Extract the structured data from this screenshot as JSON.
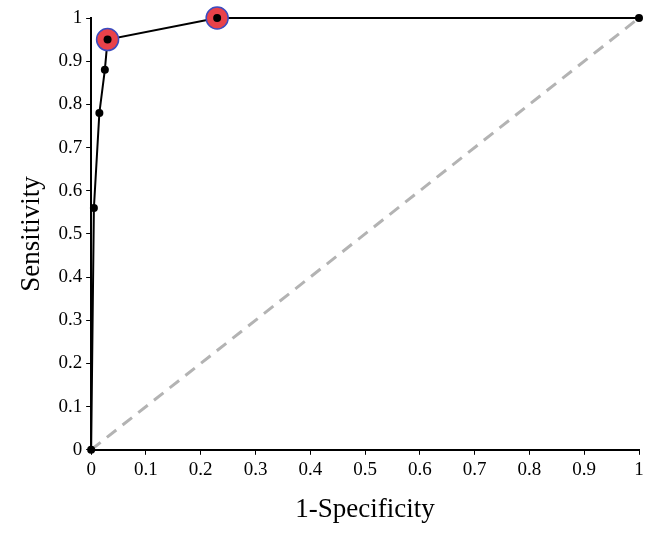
{
  "chart_data": {
    "type": "line",
    "x_label": "1-Specificity",
    "y_label": "Sensitivity",
    "xlim": [
      0,
      1
    ],
    "ylim": [
      0,
      1
    ],
    "xticks": [
      0,
      0.1,
      0.2,
      0.3,
      0.4,
      0.5,
      0.6,
      0.7,
      0.8,
      0.9,
      1
    ],
    "yticks": [
      0,
      0.1,
      0.2,
      0.3,
      0.4,
      0.5,
      0.6,
      0.7,
      0.8,
      0.9,
      1
    ],
    "grid": false,
    "series": [
      {
        "type": "line",
        "color": "#b3b3b3",
        "line_style": "dashed",
        "marker": "none",
        "x": [
          0,
          1
        ],
        "values": [
          0,
          1
        ]
      },
      {
        "type": "line",
        "color": "#000000",
        "line_style": "solid",
        "marker": "circle",
        "x": [
          0,
          0.005,
          0.015,
          0.025,
          0.03,
          0.23,
          1
        ],
        "values": [
          0,
          0.56,
          0.78,
          0.88,
          0.95,
          1,
          1
        ]
      },
      {
        "type": "scatter",
        "color": "#e8424a",
        "line_style": "none",
        "marker": "circle",
        "x": [
          0.03,
          0.23
        ],
        "values": [
          0.95,
          1
        ]
      }
    ]
  }
}
